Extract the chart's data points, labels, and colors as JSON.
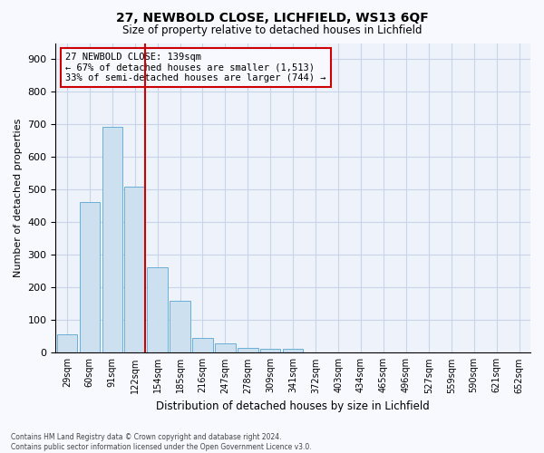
{
  "title1": "27, NEWBOLD CLOSE, LICHFIELD, WS13 6QF",
  "title2": "Size of property relative to detached houses in Lichfield",
  "xlabel": "Distribution of detached houses by size in Lichfield",
  "ylabel": "Number of detached properties",
  "categories": [
    "29sqm",
    "60sqm",
    "91sqm",
    "122sqm",
    "154sqm",
    "185sqm",
    "216sqm",
    "247sqm",
    "278sqm",
    "309sqm",
    "341sqm",
    "372sqm",
    "403sqm",
    "434sqm",
    "465sqm",
    "496sqm",
    "527sqm",
    "559sqm",
    "590sqm",
    "621sqm",
    "652sqm"
  ],
  "values": [
    57,
    463,
    693,
    510,
    261,
    160,
    44,
    30,
    15,
    13,
    12,
    0,
    0,
    0,
    0,
    0,
    0,
    0,
    0,
    0,
    0
  ],
  "bar_color": "#cce0f0",
  "bar_edge_color": "#6baed6",
  "vline_color": "#cc0000",
  "annotation_box_text": "27 NEWBOLD CLOSE: 139sqm\n← 67% of detached houses are smaller (1,513)\n33% of semi-detached houses are larger (744) →",
  "annotation_box_color": "#cc0000",
  "ylim": [
    0,
    950
  ],
  "yticks": [
    0,
    100,
    200,
    300,
    400,
    500,
    600,
    700,
    800,
    900
  ],
  "footnote": "Contains HM Land Registry data © Crown copyright and database right 2024.\nContains public sector information licensed under the Open Government Licence v3.0.",
  "bg_color": "#f8f8ff",
  "plot_bg_color": "#eef2fb",
  "grid_color": "#c8d4e8"
}
